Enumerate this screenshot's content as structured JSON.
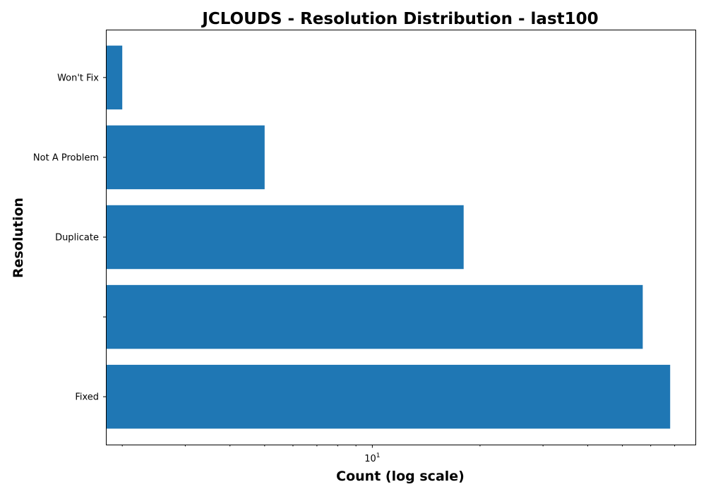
{
  "chart_data": {
    "type": "bar",
    "orientation": "horizontal",
    "title": "JCLOUDS - Resolution Distribution - last100",
    "xlabel": "Count (log scale)",
    "ylabel": "Resolution",
    "x_scale": "log",
    "xlim": [
      1.8,
      80
    ],
    "categories": [
      "Fixed",
      "",
      "Duplicate",
      "Not A Problem",
      "Won't Fix"
    ],
    "values": [
      68,
      57,
      18,
      5,
      2
    ],
    "x_major_ticks": [
      {
        "value": 10,
        "label": "10",
        "exponent": "1"
      }
    ],
    "x_minor_ticks": [
      2,
      3,
      4,
      5,
      6,
      7,
      8,
      9,
      20,
      30,
      40,
      50,
      60,
      70
    ],
    "grid": false,
    "color": "#1f77b4"
  }
}
